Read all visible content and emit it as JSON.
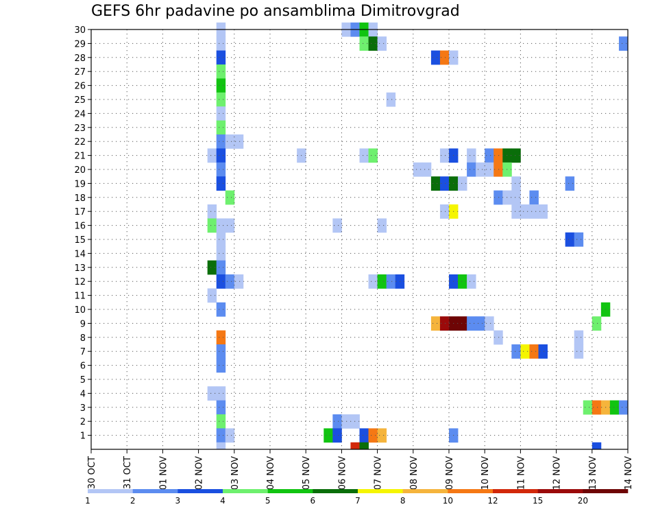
{
  "title": "GEFS 6hr padavine po ansamblima Dimitrovgrad",
  "chart_data": {
    "type": "heatmap",
    "title": "GEFS 6hr padavine po ansamblima Dimitrovgrad",
    "x_ticks": [
      "30 OCT",
      "31 OCT",
      "01 NOV",
      "02 NOV",
      "03 NOV",
      "04 NOV",
      "05 NOV",
      "06 NOV",
      "07 NOV",
      "08 NOV",
      "09 NOV",
      "10 NOV",
      "11 NOV",
      "12 NOV",
      "13 NOV",
      "14 NOV"
    ],
    "x_unit": "6-hour step",
    "xlim": [
      0,
      60
    ],
    "y_ticks": [
      1,
      2,
      3,
      4,
      5,
      6,
      7,
      8,
      9,
      10,
      11,
      12,
      13,
      14,
      15,
      16,
      17,
      18,
      19,
      20,
      21,
      22,
      23,
      24,
      25,
      26,
      27,
      28,
      29,
      30
    ],
    "ylim": [
      0,
      30
    ],
    "grid": true,
    "colorbar": {
      "labels": [
        "1",
        "2",
        "3",
        "4",
        "5",
        "6",
        "7",
        "8",
        "10",
        "12",
        "15",
        "20"
      ],
      "colors": [
        "#b3c6f5",
        "#5c8cf0",
        "#1a4fe0",
        "#6ef06e",
        "#11c411",
        "#0a6e0a",
        "#f5f500",
        "#f5b43c",
        "#f57814",
        "#d2280a",
        "#9b0a0a",
        "#6e0505"
      ]
    },
    "cells": [
      {
        "x": 14,
        "y": 30,
        "c": 1
      },
      {
        "x": 28,
        "y": 30,
        "c": 1
      },
      {
        "x": 29,
        "y": 30,
        "c": 2
      },
      {
        "x": 30,
        "y": 30,
        "c": 5
      },
      {
        "x": 31,
        "y": 30,
        "c": 1
      },
      {
        "x": 14,
        "y": 29,
        "c": 1
      },
      {
        "x": 30,
        "y": 29,
        "c": 4
      },
      {
        "x": 31,
        "y": 29,
        "c": 6
      },
      {
        "x": 32,
        "y": 29,
        "c": 1
      },
      {
        "x": 59,
        "y": 29,
        "c": 2
      },
      {
        "x": 14,
        "y": 28,
        "c": 3
      },
      {
        "x": 38,
        "y": 28,
        "c": 3
      },
      {
        "x": 39,
        "y": 28,
        "c": 9
      },
      {
        "x": 40,
        "y": 28,
        "c": 1
      },
      {
        "x": 14,
        "y": 27,
        "c": 4
      },
      {
        "x": 14,
        "y": 26,
        "c": 5
      },
      {
        "x": 14,
        "y": 25,
        "c": 4
      },
      {
        "x": 33,
        "y": 25,
        "c": 1
      },
      {
        "x": 14,
        "y": 24,
        "c": 1
      },
      {
        "x": 14,
        "y": 23,
        "c": 4
      },
      {
        "x": 14,
        "y": 22,
        "c": 2
      },
      {
        "x": 15,
        "y": 22,
        "c": 1
      },
      {
        "x": 16,
        "y": 22,
        "c": 1
      },
      {
        "x": 13,
        "y": 21,
        "c": 1
      },
      {
        "x": 14,
        "y": 21,
        "c": 3
      },
      {
        "x": 23,
        "y": 21,
        "c": 1
      },
      {
        "x": 30,
        "y": 21,
        "c": 1
      },
      {
        "x": 31,
        "y": 21,
        "c": 4
      },
      {
        "x": 39,
        "y": 21,
        "c": 1
      },
      {
        "x": 40,
        "y": 21,
        "c": 3
      },
      {
        "x": 42,
        "y": 21,
        "c": 1
      },
      {
        "x": 44,
        "y": 21,
        "c": 2
      },
      {
        "x": 45,
        "y": 21,
        "c": 9
      },
      {
        "x": 46,
        "y": 21,
        "c": 6
      },
      {
        "x": 47,
        "y": 21,
        "c": 6
      },
      {
        "x": 14,
        "y": 20,
        "c": 2
      },
      {
        "x": 36,
        "y": 20,
        "c": 1
      },
      {
        "x": 37,
        "y": 20,
        "c": 1
      },
      {
        "x": 42,
        "y": 20,
        "c": 2
      },
      {
        "x": 43,
        "y": 20,
        "c": 1
      },
      {
        "x": 44,
        "y": 20,
        "c": 1
      },
      {
        "x": 45,
        "y": 20,
        "c": 9
      },
      {
        "x": 46,
        "y": 20,
        "c": 4
      },
      {
        "x": 14,
        "y": 19,
        "c": 3
      },
      {
        "x": 38,
        "y": 19,
        "c": 6
      },
      {
        "x": 39,
        "y": 19,
        "c": 3
      },
      {
        "x": 40,
        "y": 19,
        "c": 6
      },
      {
        "x": 41,
        "y": 19,
        "c": 1
      },
      {
        "x": 47,
        "y": 19,
        "c": 1
      },
      {
        "x": 53,
        "y": 19,
        "c": 2
      },
      {
        "x": 15,
        "y": 18,
        "c": 4
      },
      {
        "x": 45,
        "y": 18,
        "c": 2
      },
      {
        "x": 46,
        "y": 18,
        "c": 1
      },
      {
        "x": 47,
        "y": 18,
        "c": 1
      },
      {
        "x": 49,
        "y": 18,
        "c": 2
      },
      {
        "x": 13,
        "y": 17,
        "c": 1
      },
      {
        "x": 39,
        "y": 17,
        "c": 1
      },
      {
        "x": 40,
        "y": 17,
        "c": 7
      },
      {
        "x": 47,
        "y": 17,
        "c": 1
      },
      {
        "x": 48,
        "y": 17,
        "c": 1
      },
      {
        "x": 49,
        "y": 17,
        "c": 1
      },
      {
        "x": 50,
        "y": 17,
        "c": 1
      },
      {
        "x": 13,
        "y": 16,
        "c": 4
      },
      {
        "x": 14,
        "y": 16,
        "c": 1
      },
      {
        "x": 15,
        "y": 16,
        "c": 1
      },
      {
        "x": 27,
        "y": 16,
        "c": 1
      },
      {
        "x": 32,
        "y": 16,
        "c": 1
      },
      {
        "x": 14,
        "y": 15,
        "c": 1
      },
      {
        "x": 53,
        "y": 15,
        "c": 3
      },
      {
        "x": 54,
        "y": 15,
        "c": 2
      },
      {
        "x": 14,
        "y": 14,
        "c": 1
      },
      {
        "x": 13,
        "y": 13,
        "c": 6
      },
      {
        "x": 14,
        "y": 13,
        "c": 2
      },
      {
        "x": 14,
        "y": 12,
        "c": 3
      },
      {
        "x": 15,
        "y": 12,
        "c": 2
      },
      {
        "x": 16,
        "y": 12,
        "c": 1
      },
      {
        "x": 31,
        "y": 12,
        "c": 1
      },
      {
        "x": 32,
        "y": 12,
        "c": 5
      },
      {
        "x": 33,
        "y": 12,
        "c": 2
      },
      {
        "x": 34,
        "y": 12,
        "c": 3
      },
      {
        "x": 40,
        "y": 12,
        "c": 3
      },
      {
        "x": 41,
        "y": 12,
        "c": 5
      },
      {
        "x": 42,
        "y": 12,
        "c": 1
      },
      {
        "x": 13,
        "y": 11,
        "c": 1
      },
      {
        "x": 14,
        "y": 10,
        "c": 2
      },
      {
        "x": 57,
        "y": 10,
        "c": 5
      },
      {
        "x": 38,
        "y": 9,
        "c": 8
      },
      {
        "x": 39,
        "y": 9,
        "c": 11
      },
      {
        "x": 40,
        "y": 9,
        "c": 12
      },
      {
        "x": 41,
        "y": 9,
        "c": 12
      },
      {
        "x": 42,
        "y": 9,
        "c": 2
      },
      {
        "x": 43,
        "y": 9,
        "c": 2
      },
      {
        "x": 44,
        "y": 9,
        "c": 1
      },
      {
        "x": 56,
        "y": 9,
        "c": 4
      },
      {
        "x": 14,
        "y": 8,
        "c": 9
      },
      {
        "x": 45,
        "y": 8,
        "c": 1
      },
      {
        "x": 54,
        "y": 8,
        "c": 1
      },
      {
        "x": 14,
        "y": 7,
        "c": 2
      },
      {
        "x": 47,
        "y": 7,
        "c": 2
      },
      {
        "x": 48,
        "y": 7,
        "c": 7
      },
      {
        "x": 49,
        "y": 7,
        "c": 9
      },
      {
        "x": 50,
        "y": 7,
        "c": 3
      },
      {
        "x": 54,
        "y": 7,
        "c": 1
      },
      {
        "x": 14,
        "y": 6,
        "c": 2
      },
      {
        "x": 13,
        "y": 4,
        "c": 1
      },
      {
        "x": 14,
        "y": 4,
        "c": 1
      },
      {
        "x": 14,
        "y": 3,
        "c": 2
      },
      {
        "x": 55,
        "y": 3,
        "c": 4
      },
      {
        "x": 56,
        "y": 3,
        "c": 9
      },
      {
        "x": 57,
        "y": 3,
        "c": 8
      },
      {
        "x": 58,
        "y": 3,
        "c": 5
      },
      {
        "x": 59,
        "y": 3,
        "c": 2
      },
      {
        "x": 14,
        "y": 2,
        "c": 4
      },
      {
        "x": 27,
        "y": 2,
        "c": 2
      },
      {
        "x": 28,
        "y": 2,
        "c": 1
      },
      {
        "x": 29,
        "y": 2,
        "c": 1
      },
      {
        "x": 14,
        "y": 1,
        "c": 2
      },
      {
        "x": 15,
        "y": 1,
        "c": 1
      },
      {
        "x": 26,
        "y": 1,
        "c": 5
      },
      {
        "x": 27,
        "y": 1,
        "c": 3
      },
      {
        "x": 30,
        "y": 1,
        "c": 3
      },
      {
        "x": 31,
        "y": 1,
        "c": 9
      },
      {
        "x": 32,
        "y": 1,
        "c": 8
      },
      {
        "x": 40,
        "y": 1,
        "c": 2
      },
      {
        "x": 14,
        "y": 0,
        "c": 1
      },
      {
        "x": 29,
        "y": 0,
        "c": 10
      },
      {
        "x": 30,
        "y": 0,
        "c": 6
      },
      {
        "x": 56,
        "y": 0,
        "c": 3
      }
    ]
  }
}
